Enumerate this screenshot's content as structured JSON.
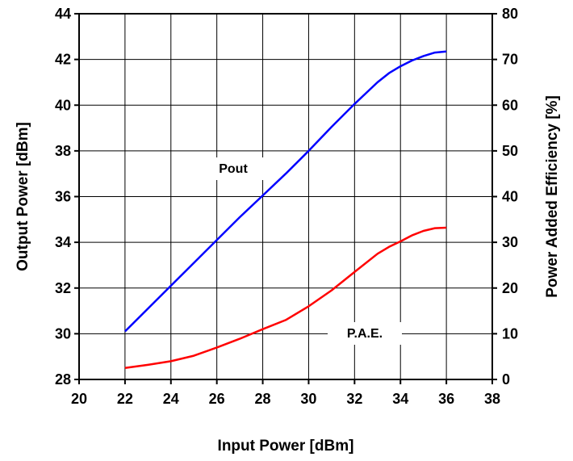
{
  "chart_data": {
    "type": "line",
    "title": "",
    "xlabel": "Input Power [dBm]",
    "ylabel_left": "Output Power [dBm]",
    "ylabel_right": "Power Added Efficiency [%]",
    "xlim": [
      20,
      38
    ],
    "ylim_left": [
      28,
      44
    ],
    "ylim_right": [
      0,
      80
    ],
    "x_ticks": [
      "20",
      "22",
      "24",
      "26",
      "28",
      "30",
      "32",
      "34",
      "36",
      "38"
    ],
    "y_left_ticks": [
      "28",
      "30",
      "32",
      "34",
      "36",
      "38",
      "40",
      "42",
      "44"
    ],
    "y_right_ticks": [
      "0",
      "10",
      "20",
      "30",
      "40",
      "50",
      "60",
      "70",
      "80"
    ],
    "grid": true,
    "legend": "none",
    "series": [
      {
        "name": "Pout",
        "axis": "left",
        "color": "#0000ff",
        "x": [
          22,
          23,
          24,
          25,
          26,
          27,
          28,
          29,
          30,
          31,
          32,
          33,
          33.5,
          34,
          34.5,
          35,
          35.5,
          36
        ],
        "y": [
          30.1,
          31.1,
          32.1,
          33.1,
          34.1,
          35.1,
          36.05,
          37.0,
          38.0,
          39.05,
          40.05,
          41.0,
          41.4,
          41.7,
          41.95,
          42.15,
          42.3,
          42.35
        ]
      },
      {
        "name": "P.A.E.",
        "axis": "right",
        "color": "#ff0000",
        "x": [
          22,
          23,
          24,
          25,
          26,
          27,
          28,
          29,
          30,
          31,
          32,
          33,
          33.5,
          34,
          34.5,
          35,
          35.5,
          36
        ],
        "y": [
          2.5,
          3.2,
          4.0,
          5.2,
          7.0,
          8.9,
          11.0,
          13.0,
          16.0,
          19.5,
          23.5,
          27.5,
          29.0,
          30.2,
          31.5,
          32.5,
          33.1,
          33.2
        ]
      }
    ],
    "annotations": [
      {
        "text": "Pout",
        "series": "Pout"
      },
      {
        "text": "P.A.E.",
        "series": "P.A.E."
      }
    ]
  }
}
